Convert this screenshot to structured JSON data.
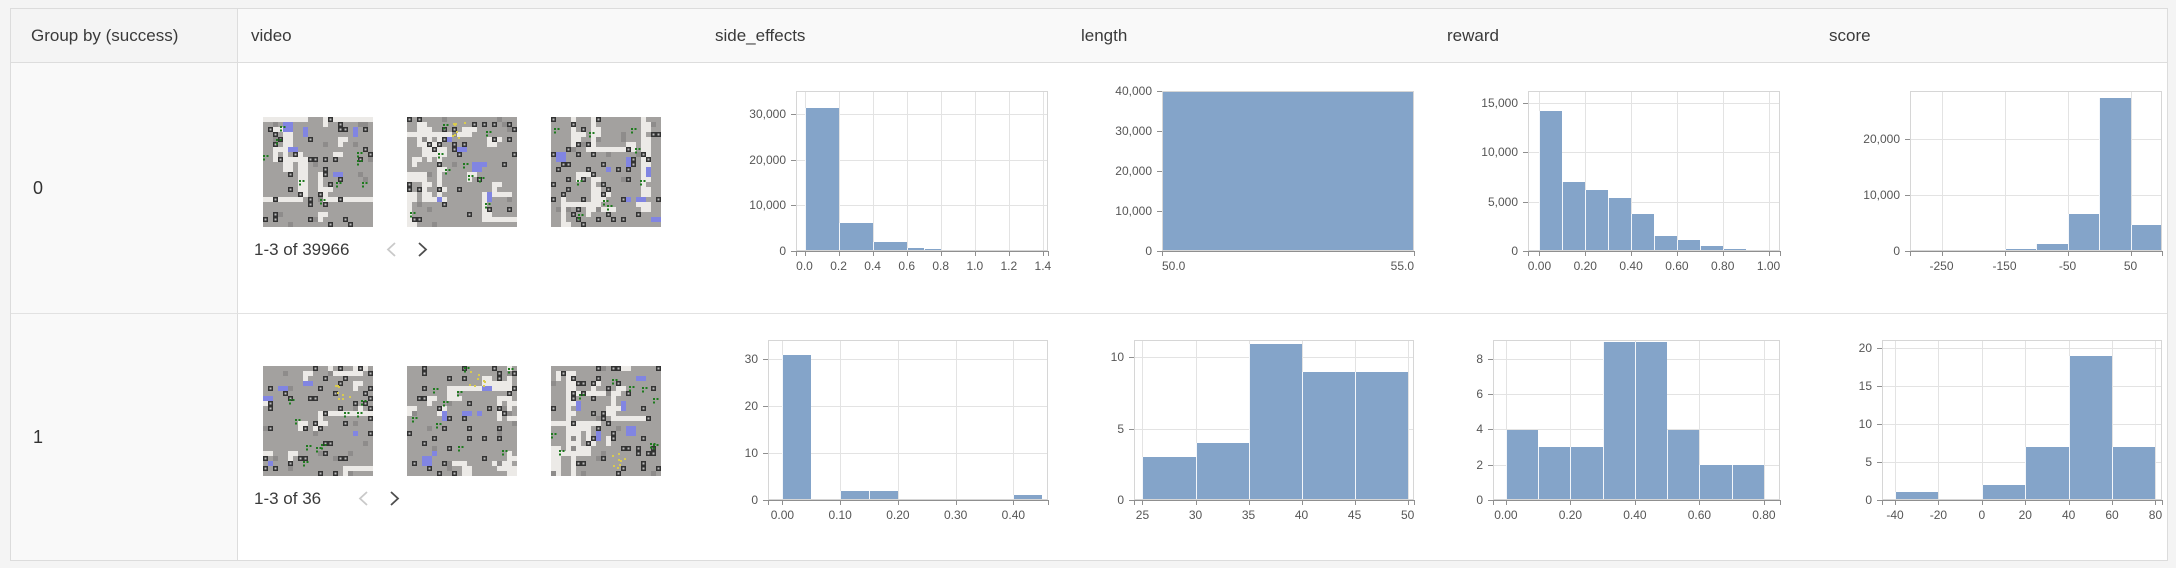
{
  "colors": {
    "bar": "#84a4c9",
    "grid": "#e3e3e3",
    "axis": "#8f8f8f",
    "plot_border": "#d6d6d6",
    "tick_label": "#565656"
  },
  "video_palette": {
    "base": "#a3a19f",
    "path": "#eceae7",
    "dark": "#333333",
    "dark_dot": "#b9b9b9",
    "shade": "#8e8c8b",
    "blue": "#8185e2",
    "green": "#1e7a1e",
    "yellow": "#d9cb4e"
  },
  "table": {
    "columns": [
      "Group by (success)",
      "video",
      "side_effects",
      "length",
      "reward",
      "score"
    ],
    "rows": [
      {
        "group": "0",
        "video": {
          "pagination": "1-3 of 39966",
          "prev_enabled": false,
          "next_enabled": true,
          "thumb_seeds": [
            11,
            47,
            83
          ]
        }
      },
      {
        "group": "1",
        "video": {
          "pagination": "1-3 of 36",
          "prev_enabled": false,
          "next_enabled": true,
          "thumb_seeds": [
            19,
            55,
            91
          ]
        }
      }
    ]
  },
  "chart_data": [
    {
      "row": "0",
      "column": "side_effects",
      "type": "bar",
      "histogram": true,
      "xmin": -0.05,
      "xmax": 1.43,
      "ymax": 35000,
      "y_ticks": [
        {
          "v": 0,
          "label": "0"
        },
        {
          "v": 10000,
          "label": "10,000"
        },
        {
          "v": 20000,
          "label": "20,000"
        },
        {
          "v": 30000,
          "label": "30,000"
        }
      ],
      "x_ticks": [
        {
          "v": 0.0,
          "label": "0.0"
        },
        {
          "v": 0.2,
          "label": "0.2"
        },
        {
          "v": 0.4,
          "label": "0.4"
        },
        {
          "v": 0.6,
          "label": "0.6"
        },
        {
          "v": 0.8,
          "label": "0.8"
        },
        {
          "v": 1.0,
          "label": "1.0"
        },
        {
          "v": 1.2,
          "label": "1.2"
        },
        {
          "v": 1.4,
          "label": "1.4"
        }
      ],
      "bins": [
        {
          "x0": 0.0,
          "x1": 0.2,
          "v": 31500
        },
        {
          "x0": 0.2,
          "x1": 0.4,
          "v": 6100
        },
        {
          "x0": 0.4,
          "x1": 0.6,
          "v": 2000
        },
        {
          "x0": 0.6,
          "x1": 0.7,
          "v": 600
        },
        {
          "x0": 0.7,
          "x1": 0.8,
          "v": 400
        },
        {
          "x0": 0.8,
          "x1": 1.0,
          "v": 120
        },
        {
          "x0": 1.2,
          "x1": 1.4,
          "v": 60
        }
      ]
    },
    {
      "row": "0",
      "column": "length",
      "type": "bar",
      "histogram": true,
      "xmin": 50.0,
      "xmax": 55.0,
      "ymax": 40000,
      "y_ticks": [
        {
          "v": 0,
          "label": "0"
        },
        {
          "v": 10000,
          "label": "10,000"
        },
        {
          "v": 20000,
          "label": "20,000"
        },
        {
          "v": 30000,
          "label": "30,000"
        },
        {
          "v": 40000,
          "label": "40,000"
        }
      ],
      "x_ticks": [
        {
          "v": 50.0,
          "label": "50.0"
        },
        {
          "v": 55.0,
          "label": "55.0"
        }
      ],
      "bins": [
        {
          "x0": 50.0,
          "x1": 55.0,
          "v": 39966
        }
      ]
    },
    {
      "row": "0",
      "column": "reward",
      "type": "bar",
      "histogram": true,
      "xmin": -0.05,
      "xmax": 1.05,
      "ymax": 16200,
      "y_ticks": [
        {
          "v": 0,
          "label": "0"
        },
        {
          "v": 5000,
          "label": "5,000"
        },
        {
          "v": 10000,
          "label": "10,000"
        },
        {
          "v": 15000,
          "label": "15,000"
        }
      ],
      "x_ticks": [
        {
          "v": 0.0,
          "label": "0.00"
        },
        {
          "v": 0.2,
          "label": "0.20"
        },
        {
          "v": 0.4,
          "label": "0.40"
        },
        {
          "v": 0.6,
          "label": "0.60"
        },
        {
          "v": 0.8,
          "label": "0.80"
        },
        {
          "v": 1.0,
          "label": "1.00"
        }
      ],
      "bins": [
        {
          "x0": 0.0,
          "x1": 0.1,
          "v": 14300
        },
        {
          "x0": 0.1,
          "x1": 0.2,
          "v": 7000
        },
        {
          "x0": 0.2,
          "x1": 0.3,
          "v": 6200
        },
        {
          "x0": 0.3,
          "x1": 0.4,
          "v": 5400
        },
        {
          "x0": 0.4,
          "x1": 0.5,
          "v": 3800
        },
        {
          "x0": 0.5,
          "x1": 0.6,
          "v": 1500
        },
        {
          "x0": 0.6,
          "x1": 0.7,
          "v": 1100
        },
        {
          "x0": 0.7,
          "x1": 0.8,
          "v": 500
        },
        {
          "x0": 0.8,
          "x1": 0.9,
          "v": 250
        },
        {
          "x0": 0.9,
          "x1": 1.0,
          "v": 150
        }
      ]
    },
    {
      "row": "0",
      "column": "score",
      "type": "bar",
      "histogram": true,
      "xmin": -300,
      "xmax": 100,
      "ymax": 28500,
      "y_ticks": [
        {
          "v": 0,
          "label": "0"
        },
        {
          "v": 10000,
          "label": "10,000"
        },
        {
          "v": 20000,
          "label": "20,000"
        }
      ],
      "x_ticks": [
        {
          "v": -250,
          "label": "-250"
        },
        {
          "v": -150,
          "label": "-150"
        },
        {
          "v": -50,
          "label": "-50"
        },
        {
          "v": 50,
          "label": "50"
        }
      ],
      "bins": [
        {
          "x0": -200,
          "x1": -150,
          "v": 100
        },
        {
          "x0": -150,
          "x1": -100,
          "v": 300
        },
        {
          "x0": -100,
          "x1": -50,
          "v": 1200
        },
        {
          "x0": -50,
          "x1": 0,
          "v": 6700
        },
        {
          "x0": 0,
          "x1": 50,
          "v": 27500
        },
        {
          "x0": 50,
          "x1": 100,
          "v": 4700
        }
      ]
    },
    {
      "row": "1",
      "column": "side_effects",
      "type": "bar",
      "histogram": true,
      "xmin": -0.025,
      "xmax": 0.46,
      "ymax": 34,
      "y_ticks": [
        {
          "v": 0,
          "label": "0"
        },
        {
          "v": 10,
          "label": "10"
        },
        {
          "v": 20,
          "label": "20"
        },
        {
          "v": 30,
          "label": "30"
        }
      ],
      "x_ticks": [
        {
          "v": 0.0,
          "label": "0.00"
        },
        {
          "v": 0.1,
          "label": "0.10"
        },
        {
          "v": 0.2,
          "label": "0.20"
        },
        {
          "v": 0.3,
          "label": "0.30"
        },
        {
          "v": 0.4,
          "label": "0.40"
        }
      ],
      "bins": [
        {
          "x0": 0.0,
          "x1": 0.05,
          "v": 31
        },
        {
          "x0": 0.1,
          "x1": 0.15,
          "v": 2
        },
        {
          "x0": 0.15,
          "x1": 0.2,
          "v": 2
        },
        {
          "x0": 0.4,
          "x1": 0.45,
          "v": 1
        }
      ]
    },
    {
      "row": "1",
      "column": "length",
      "type": "bar",
      "histogram": true,
      "xmin": 24.2,
      "xmax": 50.6,
      "ymax": 11.2,
      "y_ticks": [
        {
          "v": 0,
          "label": "0"
        },
        {
          "v": 5,
          "label": "5"
        },
        {
          "v": 10,
          "label": "10"
        }
      ],
      "x_ticks": [
        {
          "v": 25,
          "label": "25"
        },
        {
          "v": 30,
          "label": "30"
        },
        {
          "v": 35,
          "label": "35"
        },
        {
          "v": 40,
          "label": "40"
        },
        {
          "v": 45,
          "label": "45"
        },
        {
          "v": 50,
          "label": "50"
        }
      ],
      "bins": [
        {
          "x0": 25,
          "x1": 30,
          "v": 3
        },
        {
          "x0": 30,
          "x1": 35,
          "v": 4
        },
        {
          "x0": 35,
          "x1": 40,
          "v": 11
        },
        {
          "x0": 40,
          "x1": 45,
          "v": 9
        },
        {
          "x0": 45,
          "x1": 50,
          "v": 9
        }
      ]
    },
    {
      "row": "1",
      "column": "reward",
      "type": "bar",
      "histogram": true,
      "xmin": -0.04,
      "xmax": 0.85,
      "ymax": 9.05,
      "y_ticks": [
        {
          "v": 0,
          "label": "0"
        },
        {
          "v": 2,
          "label": "2"
        },
        {
          "v": 4,
          "label": "4"
        },
        {
          "v": 6,
          "label": "6"
        },
        {
          "v": 8,
          "label": "8"
        }
      ],
      "x_ticks": [
        {
          "v": 0.0,
          "label": "0.00"
        },
        {
          "v": 0.2,
          "label": "0.20"
        },
        {
          "v": 0.4,
          "label": "0.40"
        },
        {
          "v": 0.6,
          "label": "0.60"
        },
        {
          "v": 0.8,
          "label": "0.80"
        }
      ],
      "bins": [
        {
          "x0": 0.0,
          "x1": 0.1,
          "v": 4
        },
        {
          "x0": 0.1,
          "x1": 0.2,
          "v": 3
        },
        {
          "x0": 0.2,
          "x1": 0.3,
          "v": 3
        },
        {
          "x0": 0.3,
          "x1": 0.4,
          "v": 9
        },
        {
          "x0": 0.4,
          "x1": 0.5,
          "v": 9
        },
        {
          "x0": 0.5,
          "x1": 0.6,
          "v": 4
        },
        {
          "x0": 0.6,
          "x1": 0.7,
          "v": 2
        },
        {
          "x0": 0.7,
          "x1": 0.8,
          "v": 2
        }
      ]
    },
    {
      "row": "1",
      "column": "score",
      "type": "bar",
      "histogram": true,
      "xmin": -46,
      "xmax": 83,
      "ymax": 21,
      "y_ticks": [
        {
          "v": 0,
          "label": "0"
        },
        {
          "v": 5,
          "label": "5"
        },
        {
          "v": 10,
          "label": "10"
        },
        {
          "v": 15,
          "label": "15"
        },
        {
          "v": 20,
          "label": "20"
        }
      ],
      "x_ticks": [
        {
          "v": -40,
          "label": "-40"
        },
        {
          "v": -20,
          "label": "-20"
        },
        {
          "v": 0,
          "label": "0"
        },
        {
          "v": 20,
          "label": "20"
        },
        {
          "v": 40,
          "label": "40"
        },
        {
          "v": 60,
          "label": "60"
        },
        {
          "v": 80,
          "label": "80"
        }
      ],
      "bins": [
        {
          "x0": -40,
          "x1": -20,
          "v": 1
        },
        {
          "x0": 0,
          "x1": 20,
          "v": 2
        },
        {
          "x0": 20,
          "x1": 40,
          "v": 7
        },
        {
          "x0": 40,
          "x1": 60,
          "v": 19
        },
        {
          "x0": 60,
          "x1": 80,
          "v": 7
        }
      ]
    }
  ]
}
